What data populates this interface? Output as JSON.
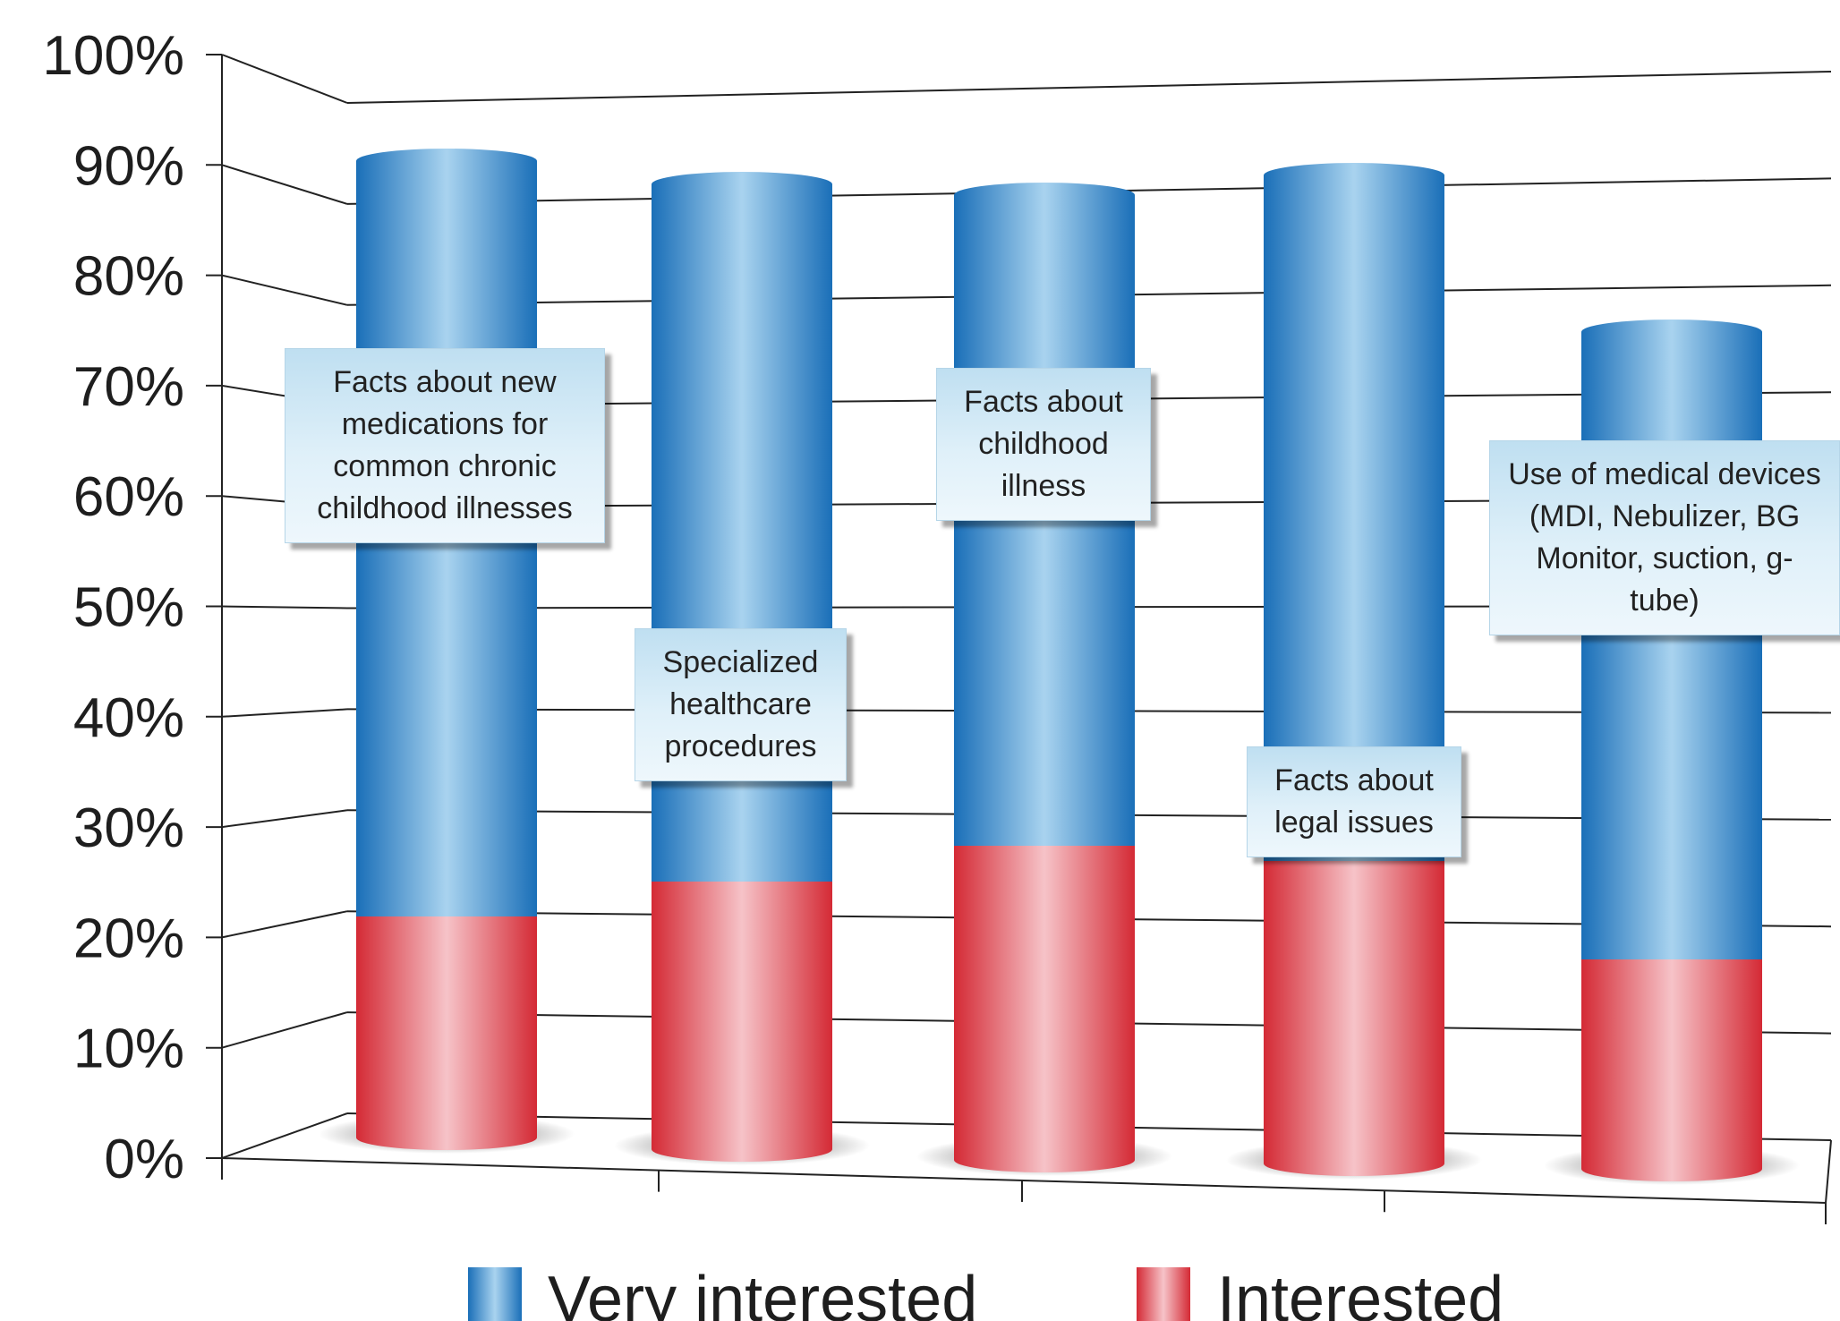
{
  "chart_data": {
    "type": "bar",
    "stacked": true,
    "categories": [
      "Facts about new medications for common chronic childhood illnesses",
      "Specialized healthcare procedures",
      "Facts about childhood illness",
      "Facts about legal issues",
      "Use of medical devices (MDI, Nebulizer, BG Monitor, suction, g-tube)"
    ],
    "series": [
      {
        "name": "Interested",
        "values": [
          19,
          23,
          27,
          26,
          18
        ],
        "color": "#d9303c"
      },
      {
        "name": "Very interested",
        "values": [
          66,
          61,
          57,
          60,
          55
        ],
        "color": "#2a7fc2"
      }
    ],
    "y_ticks": [
      "0%",
      "10%",
      "20%",
      "30%",
      "40%",
      "50%",
      "60%",
      "70%",
      "80%",
      "90%",
      "100%"
    ],
    "ylim": [
      0,
      100
    ],
    "grid": true,
    "legend_position": "bottom",
    "annotations": [
      "Facts about new medications for common chronic childhood illnesses",
      "Specialized healthcare procedures",
      "Facts about childhood illness",
      "Facts about legal issues",
      "Use of medical devices (MDI, Nebulizer, BG Monitor, suction, g-tube)"
    ]
  }
}
